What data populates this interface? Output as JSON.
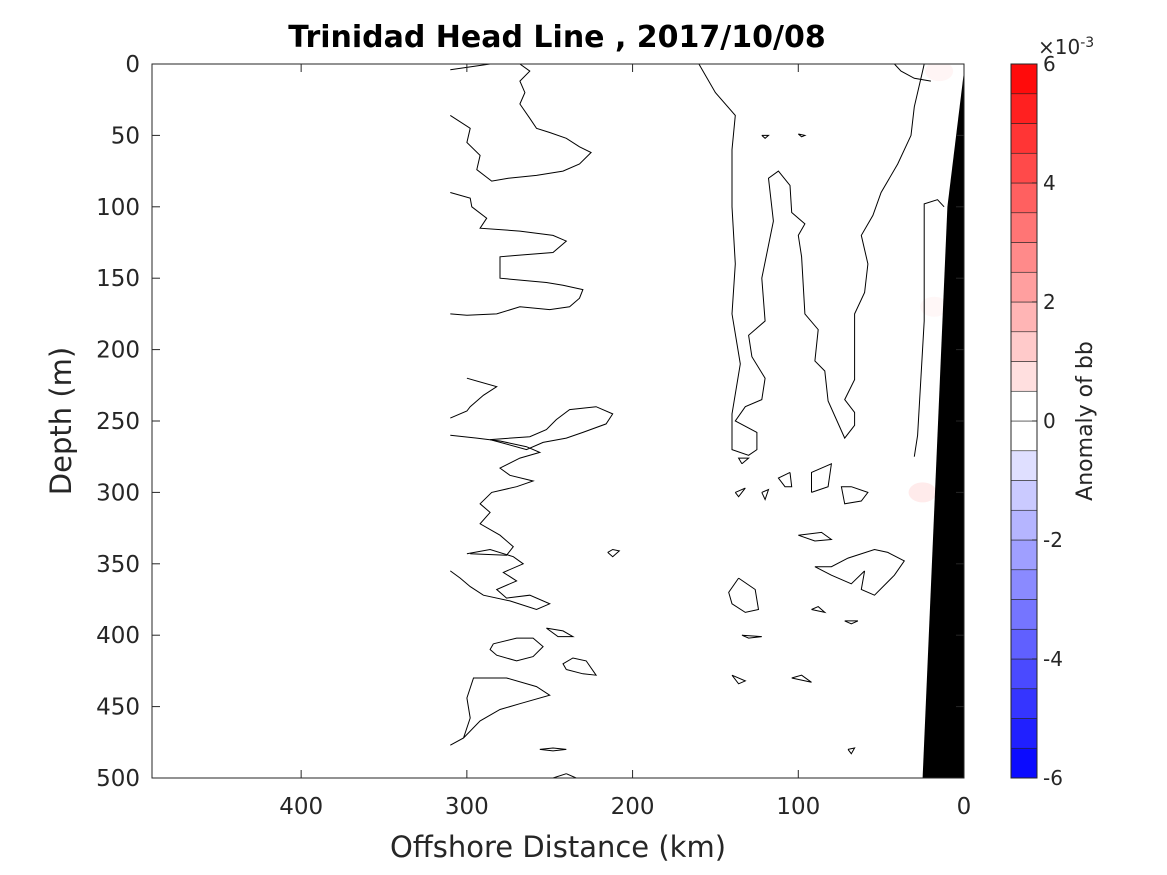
{
  "chart_data": {
    "type": "heatmap",
    "title": "Trinidad Head Line , 2017/10/08",
    "xlabel": "Offshore Distance (km)",
    "ylabel": "Depth (m)",
    "xlim": [
      490,
      0
    ],
    "ylim": [
      0,
      500
    ],
    "x_ticks": [
      400,
      300,
      200,
      100,
      0
    ],
    "y_ticks": [
      0,
      50,
      100,
      150,
      200,
      250,
      300,
      350,
      400,
      450,
      500
    ],
    "colorbar": {
      "label": "Anomaly of bb",
      "exponent_label": "×10",
      "exponent_power": "-3",
      "range": [
        -6,
        6
      ],
      "ticks": [
        6,
        4,
        2,
        0,
        -2,
        -4,
        -6
      ],
      "levels": [
        -6,
        -5.5,
        -5,
        -4.5,
        -4,
        -3.5,
        -3,
        -2.5,
        -2,
        -1.5,
        -1,
        -0.5,
        0,
        0.5,
        1,
        1.5,
        2,
        2.5,
        3,
        3.5,
        4,
        4.5,
        5,
        5.5,
        6
      ],
      "colors": {
        "negative": "#0000ff",
        "neutral": "#ffffff",
        "positive": "#ff0000"
      }
    },
    "bathymetry_color": "#000000",
    "bathymetry": [
      [
        0,
        5
      ],
      [
        10,
        100
      ],
      [
        25,
        500
      ],
      [
        0,
        500
      ]
    ],
    "anomaly_patches": [
      {
        "x": 15,
        "y": 5,
        "value": 0.4
      },
      {
        "x": 18,
        "y": 170,
        "value": 0.3
      },
      {
        "x": 25,
        "y": 300,
        "value": 0.8
      }
    ],
    "contour_level": 0,
    "contours": [
      [
        [
          310,
          4
        ],
        [
          298,
          2
        ],
        [
          286,
          0
        ]
      ],
      [
        [
          268,
          0
        ],
        [
          262,
          5
        ],
        [
          268,
          12
        ],
        [
          265,
          20
        ],
        [
          268,
          28
        ],
        [
          262,
          38
        ],
        [
          258,
          45
        ],
        [
          250,
          48
        ],
        [
          240,
          52
        ],
        [
          232,
          58
        ],
        [
          225,
          62
        ],
        [
          232,
          70
        ],
        [
          242,
          75
        ],
        [
          258,
          78
        ],
        [
          275,
          80
        ],
        [
          285,
          82
        ],
        [
          294,
          74
        ],
        [
          292,
          64
        ],
        [
          300,
          55
        ],
        [
          298,
          45
        ],
        [
          310,
          36
        ]
      ],
      [
        [
          310,
          90
        ],
        [
          298,
          94
        ],
        [
          297,
          100
        ],
        [
          288,
          108
        ],
        [
          292,
          115
        ],
        [
          268,
          117
        ],
        [
          248,
          120
        ],
        [
          240,
          124
        ],
        [
          248,
          132
        ],
        [
          270,
          134
        ],
        [
          280,
          135
        ],
        [
          280,
          150
        ],
        [
          252,
          153
        ],
        [
          242,
          155
        ],
        [
          230,
          158
        ],
        [
          232,
          164
        ],
        [
          238,
          170
        ],
        [
          250,
          172
        ],
        [
          268,
          170
        ],
        [
          282,
          175
        ],
        [
          300,
          176
        ],
        [
          310,
          175
        ]
      ],
      [
        [
          300,
          220
        ],
        [
          282,
          226
        ],
        [
          290,
          232
        ],
        [
          298,
          240
        ],
        [
          300,
          243
        ],
        [
          310,
          248
        ]
      ],
      [
        [
          310,
          260
        ],
        [
          294,
          262
        ],
        [
          280,
          264
        ],
        [
          264,
          268
        ],
        [
          256,
          272
        ],
        [
          268,
          276
        ],
        [
          280,
          283
        ],
        [
          274,
          288
        ],
        [
          260,
          292
        ],
        [
          270,
          296
        ],
        [
          285,
          300
        ],
        [
          292,
          308
        ],
        [
          286,
          314
        ],
        [
          292,
          322
        ],
        [
          280,
          330
        ],
        [
          272,
          338
        ],
        [
          276,
          344
        ],
        [
          298,
          343
        ]
      ],
      [
        [
          310,
          355
        ],
        [
          304,
          360
        ],
        [
          298,
          366
        ],
        [
          290,
          372
        ],
        [
          274,
          376
        ],
        [
          258,
          382
        ],
        [
          250,
          378
        ],
        [
          262,
          372
        ],
        [
          276,
          374
        ],
        [
          282,
          368
        ],
        [
          270,
          362
        ],
        [
          278,
          356
        ],
        [
          266,
          350
        ],
        [
          272,
          345
        ],
        [
          286,
          340
        ],
        [
          300,
          343
        ]
      ],
      [
        [
          310,
          477
        ],
        [
          302,
          472
        ],
        [
          298,
          458
        ],
        [
          300,
          444
        ],
        [
          296,
          430
        ],
        [
          276,
          430
        ],
        [
          258,
          436
        ],
        [
          250,
          442
        ],
        [
          268,
          448
        ],
        [
          280,
          452
        ],
        [
          292,
          460
        ],
        [
          302,
          472
        ]
      ],
      [
        [
          284,
          406
        ],
        [
          270,
          402
        ],
        [
          260,
          402
        ],
        [
          254,
          408
        ],
        [
          260,
          415
        ],
        [
          270,
          418
        ],
        [
          282,
          414
        ],
        [
          286,
          410
        ],
        [
          284,
          406
        ]
      ],
      [
        [
          240,
          424
        ],
        [
          230,
          427
        ],
        [
          222,
          428
        ],
        [
          228,
          418
        ],
        [
          236,
          416
        ],
        [
          242,
          420
        ],
        [
          240,
          424
        ]
      ],
      [
        [
          252,
          395
        ],
        [
          245,
          401
        ],
        [
          236,
          401
        ],
        [
          242,
          397
        ],
        [
          252,
          395
        ]
      ],
      [
        [
          256,
          480
        ],
        [
          248,
          481
        ],
        [
          240,
          480
        ],
        [
          248,
          479
        ],
        [
          256,
          480
        ]
      ],
      [
        [
          240,
          497
        ],
        [
          234,
          500
        ],
        [
          248,
          500
        ],
        [
          240,
          497
        ]
      ],
      [
        [
          215,
          342
        ],
        [
          212,
          345
        ],
        [
          208,
          341
        ],
        [
          212,
          340
        ],
        [
          215,
          342
        ]
      ],
      [
        [
          286,
          263
        ],
        [
          262,
          261
        ],
        [
          252,
          256
        ],
        [
          246,
          249
        ],
        [
          238,
          242
        ],
        [
          222,
          240
        ],
        [
          212,
          245
        ],
        [
          216,
          252
        ],
        [
          230,
          258
        ],
        [
          240,
          262
        ],
        [
          254,
          265
        ],
        [
          264,
          270
        ],
        [
          286,
          263
        ]
      ],
      [
        [
          160,
          0
        ],
        [
          150,
          20
        ],
        [
          138,
          36
        ],
        [
          140,
          60
        ],
        [
          140,
          100
        ],
        [
          138,
          140
        ],
        [
          140,
          175
        ],
        [
          135,
          210
        ],
        [
          140,
          245
        ],
        [
          140,
          270
        ],
        [
          130,
          274
        ],
        [
          125,
          270
        ],
        [
          125,
          258
        ],
        [
          138,
          250
        ],
        [
          132,
          240
        ],
        [
          122,
          235
        ],
        [
          120,
          220
        ],
        [
          128,
          205
        ],
        [
          130,
          190
        ],
        [
          120,
          180
        ],
        [
          122,
          150
        ],
        [
          115,
          110
        ],
        [
          118,
          80
        ],
        [
          112,
          75
        ],
        [
          105,
          85
        ],
        [
          104,
          104
        ],
        [
          96,
          112
        ],
        [
          100,
          120
        ],
        [
          98,
          135
        ],
        [
          96,
          175
        ],
        [
          88,
          186
        ],
        [
          90,
          208
        ],
        [
          84,
          215
        ],
        [
          82,
          236
        ],
        [
          72,
          262
        ],
        [
          66,
          253
        ],
        [
          66,
          244
        ],
        [
          72,
          235
        ],
        [
          66,
          221
        ],
        [
          66,
          175
        ],
        [
          60,
          160
        ],
        [
          58,
          140
        ],
        [
          62,
          120
        ],
        [
          55,
          106
        ],
        [
          50,
          90
        ],
        [
          40,
          70
        ],
        [
          32,
          50
        ],
        [
          30,
          30
        ],
        [
          25,
          5
        ],
        [
          24,
          0
        ]
      ],
      [
        [
          50,
          0
        ],
        [
          42,
          0
        ],
        [
          38,
          5
        ],
        [
          30,
          10
        ],
        [
          20,
          12
        ]
      ],
      [
        [
          12,
          100
        ],
        [
          16,
          95
        ],
        [
          24,
          98
        ],
        [
          24,
          180
        ],
        [
          28,
          260
        ],
        [
          30,
          275
        ]
      ],
      [
        [
          105,
          286
        ],
        [
          112,
          290
        ],
        [
          108,
          296
        ],
        [
          104,
          296
        ],
        [
          105,
          286
        ]
      ],
      [
        [
          134,
          280
        ],
        [
          130,
          276
        ],
        [
          136,
          276
        ],
        [
          134,
          280
        ]
      ],
      [
        [
          138,
          300
        ],
        [
          132,
          297
        ],
        [
          136,
          303
        ],
        [
          138,
          300
        ]
      ],
      [
        [
          122,
          300
        ],
        [
          120,
          305
        ],
        [
          118,
          298
        ],
        [
          122,
          300
        ]
      ],
      [
        [
          92,
          300
        ],
        [
          82,
          296
        ],
        [
          80,
          280
        ],
        [
          92,
          286
        ],
        [
          92,
          300
        ]
      ],
      [
        [
          68,
          296
        ],
        [
          58,
          300
        ],
        [
          62,
          306
        ],
        [
          72,
          308
        ],
        [
          74,
          296
        ],
        [
          68,
          296
        ]
      ],
      [
        [
          60,
          355
        ],
        [
          62,
          368
        ],
        [
          54,
          372
        ],
        [
          42,
          358
        ],
        [
          36,
          348
        ],
        [
          46,
          342
        ],
        [
          54,
          340
        ],
        [
          70,
          346
        ],
        [
          80,
          352
        ],
        [
          90,
          352
        ],
        [
          80,
          358
        ],
        [
          68,
          364
        ],
        [
          60,
          355
        ]
      ],
      [
        [
          100,
          330
        ],
        [
          90,
          334
        ],
        [
          80,
          333
        ],
        [
          86,
          328
        ],
        [
          100,
          330
        ]
      ],
      [
        [
          136,
          360
        ],
        [
          142,
          370
        ],
        [
          140,
          378
        ],
        [
          132,
          384
        ],
        [
          124,
          382
        ],
        [
          126,
          368
        ],
        [
          136,
          360
        ]
      ],
      [
        [
          92,
          382
        ],
        [
          88,
          380
        ],
        [
          84,
          384
        ],
        [
          92,
          382
        ]
      ],
      [
        [
          134,
          400
        ],
        [
          130,
          402
        ],
        [
          122,
          401
        ],
        [
          134,
          400
        ]
      ],
      [
        [
          140,
          428
        ],
        [
          136,
          434
        ],
        [
          132,
          432
        ],
        [
          140,
          428
        ]
      ],
      [
        [
          104,
          430
        ],
        [
          98,
          428
        ],
        [
          92,
          433
        ],
        [
          104,
          430
        ]
      ],
      [
        [
          72,
          390
        ],
        [
          68,
          392
        ],
        [
          64,
          390
        ],
        [
          72,
          390
        ]
      ],
      [
        [
          70,
          480
        ],
        [
          68,
          483
        ],
        [
          66,
          479
        ],
        [
          70,
          480
        ]
      ],
      [
        [
          122,
          50
        ],
        [
          120,
          52
        ],
        [
          118,
          50
        ],
        [
          122,
          50
        ]
      ],
      [
        [
          100,
          49
        ],
        [
          98,
          51
        ],
        [
          96,
          50
        ],
        [
          100,
          49
        ]
      ]
    ]
  }
}
